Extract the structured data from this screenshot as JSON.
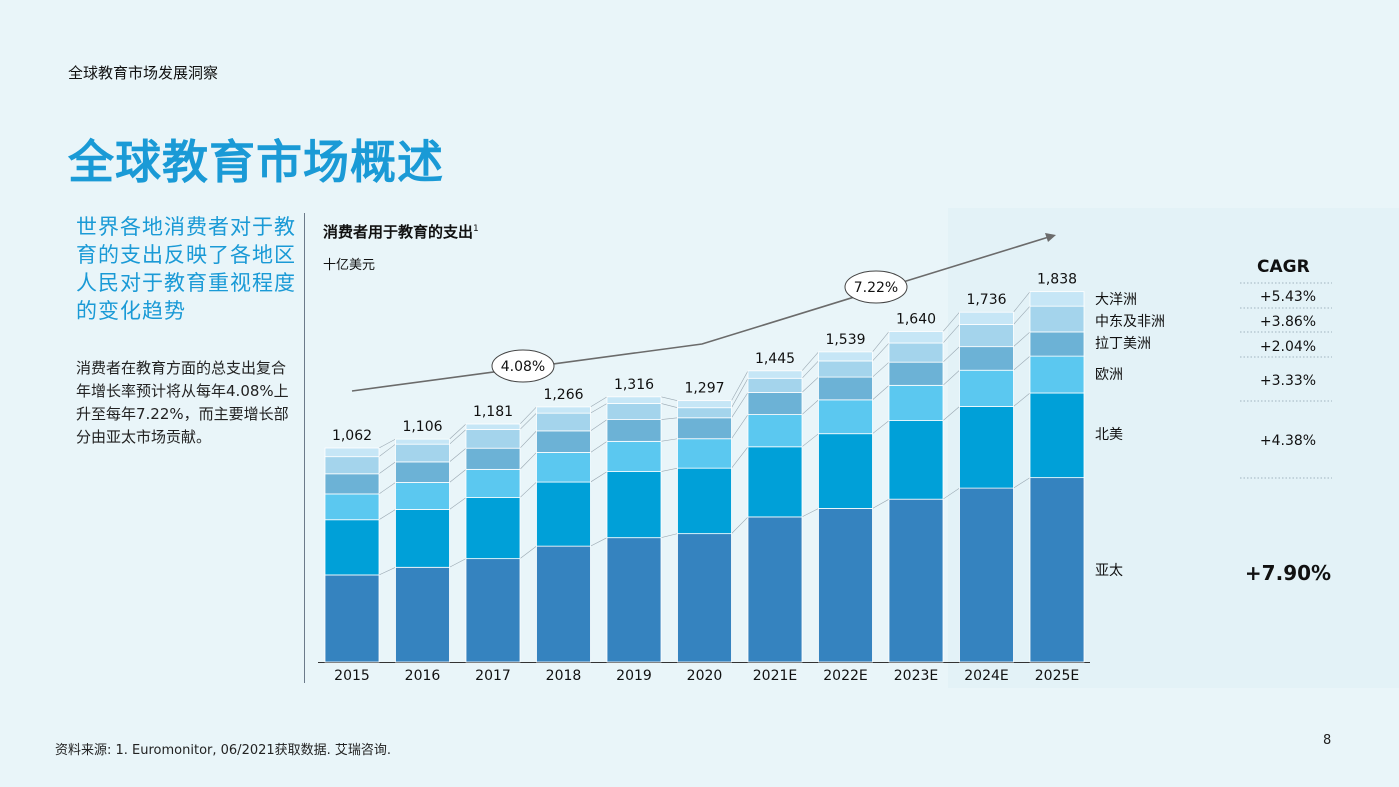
{
  "header": {
    "subtitle": "全球教育市场发展洞察",
    "title": "全球教育市场概述"
  },
  "left": {
    "lead": "世界各地消费者对于教育的支出反映了各地区人民对于教育重视程度的变化趋势",
    "body": "消费者在教育方面的总支出复合年增长率预计将从每年4.08%上升至每年7.22%，而主要增长部分由亚太市场贡献。"
  },
  "chart_title": "消费者用于教育的支出",
  "chart_title_note": "1",
  "chart_unit": "十亿美元",
  "cagr_header": "CAGR",
  "footnote": "资料来源: 1. Euromonitor, 06/2021获取数据. 艾瑞咨询.",
  "page_number": "8",
  "colors": {
    "background": "#e9f5f9",
    "title_blue": "#1a9ad6",
    "series": [
      "#3583bf",
      "#00a0d8",
      "#5bc8f0",
      "#6cb2d6",
      "#a4d4ec",
      "#c6e6f6"
    ]
  },
  "chart_data": {
    "type": "bar",
    "stacked": true,
    "categories": [
      "2015",
      "2016",
      "2017",
      "2018",
      "2019",
      "2020",
      "2021E",
      "2022E",
      "2023E",
      "2024E",
      "2025E"
    ],
    "totals": [
      "1,062",
      "1,106",
      "1,181",
      "1,266",
      "1,316",
      "1,297",
      "1,445",
      "1,539",
      "1,640",
      "1,736",
      "1,838"
    ],
    "ylim": [
      0,
      2000
    ],
    "series": [
      {
        "name": "亚太",
        "cagr": "+7.90%",
        "color": "#3583bf",
        "values": [
          432,
          470,
          513,
          575,
          617,
          637,
          720,
          762,
          808,
          863,
          915
        ]
      },
      {
        "name": "北美",
        "cagr": "+4.38%",
        "color": "#00a0d8",
        "values": [
          274,
          287,
          303,
          318,
          328,
          325,
          348,
          371,
          390,
          405,
          420
        ]
      },
      {
        "name": "欧洲",
        "cagr": "+3.33%",
        "color": "#5bc8f0",
        "values": [
          128,
          134,
          140,
          147,
          150,
          146,
          160,
          168,
          175,
          180,
          183
        ]
      },
      {
        "name": "拉丁美洲",
        "cagr": "+2.04%",
        "color": "#6cb2d6",
        "values": [
          100,
          102,
          105,
          107,
          108,
          104,
          110,
          113,
          115,
          117,
          120
        ]
      },
      {
        "name": "中东及非洲",
        "cagr": "+3.86%",
        "color": "#a4d4ec",
        "values": [
          85,
          88,
          93,
          88,
          80,
          50,
          70,
          80,
          95,
          110,
          128
        ]
      },
      {
        "name": "大洋洲",
        "cagr": "+5.43%",
        "color": "#c6e6f6",
        "values": [
          43,
          25,
          27,
          31,
          33,
          35,
          37,
          45,
          57,
          61,
          72
        ]
      }
    ],
    "trend_annotations": [
      "4.08%",
      "7.22%"
    ]
  }
}
